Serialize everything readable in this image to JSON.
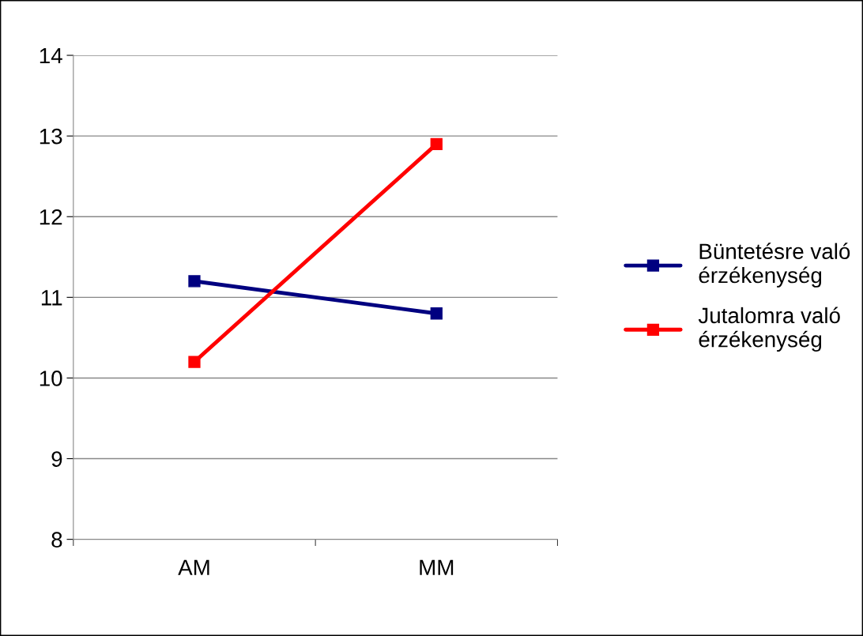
{
  "chart_data": {
    "type": "line",
    "categories": [
      "AM",
      "MM"
    ],
    "series": [
      {
        "name": "Büntetésre való érzékenység",
        "color": "#000080",
        "values": [
          11.2,
          10.8
        ]
      },
      {
        "name": "Jutalomra való érzékenység",
        "color": "#ff0000",
        "values": [
          10.2,
          12.9
        ]
      }
    ],
    "ylim": [
      8,
      14
    ],
    "yticks": [
      8,
      9,
      10,
      11,
      12,
      13,
      14
    ],
    "grid": "y",
    "legend": "right",
    "marker": "square",
    "line_style": "solid"
  }
}
